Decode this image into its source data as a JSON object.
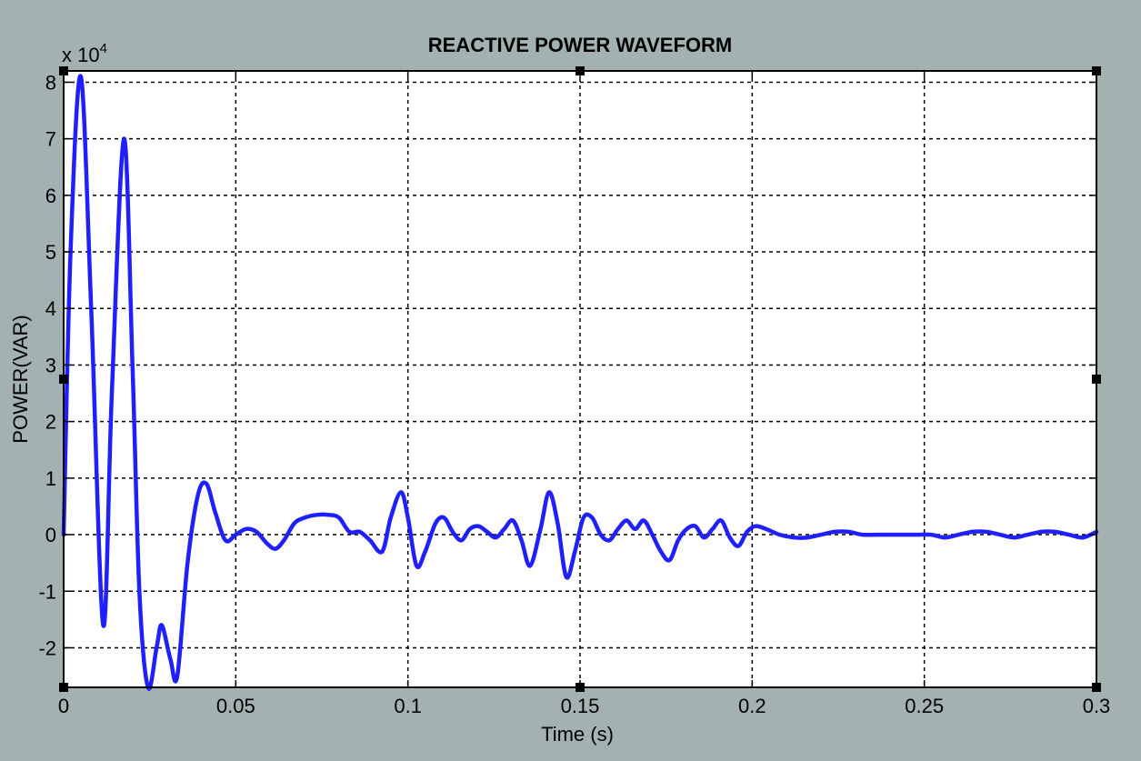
{
  "window": {
    "background": "#a3b2b0"
  },
  "chart_data": {
    "type": "line",
    "title": "REACTIVE POWER WAVEFORM",
    "xlabel": "Time (s)",
    "ylabel": "POWER(VAR)",
    "y_multiplier": "x 10",
    "y_multiplier_exponent": "4",
    "xlim": [
      0,
      0.3
    ],
    "ylim": [
      -2.7,
      8.2
    ],
    "x_ticks": [
      0,
      0.05,
      0.1,
      0.15,
      0.2,
      0.25,
      0.3
    ],
    "x_tick_labels": [
      "0",
      "0.05",
      "0.1",
      "0.15",
      "0.2",
      "0.25",
      "0.3"
    ],
    "y_ticks": [
      -2,
      -1,
      0,
      1,
      2,
      3,
      4,
      5,
      6,
      7,
      8
    ],
    "y_tick_labels": [
      "-2",
      "-1",
      "0",
      "1",
      "2",
      "3",
      "4",
      "5",
      "6",
      "7",
      "8"
    ],
    "grid": true,
    "colors": {
      "line": "#1f1fff",
      "axes_bg": "#ffffff",
      "grid": "#000000"
    },
    "series": [
      {
        "x": [
          0,
          0.002,
          0.005,
          0.008,
          0.0115,
          0.014,
          0.0175,
          0.02,
          0.022,
          0.0245,
          0.027,
          0.0285,
          0.031,
          0.033,
          0.036,
          0.039,
          0.0415,
          0.044,
          0.047,
          0.05,
          0.053,
          0.056,
          0.059,
          0.0615,
          0.064,
          0.067,
          0.07,
          0.0735,
          0.077,
          0.08,
          0.083,
          0.086,
          0.089,
          0.0925,
          0.095,
          0.098,
          0.1,
          0.1025,
          0.105,
          0.108,
          0.1105,
          0.113,
          0.1155,
          0.118,
          0.1205,
          0.123,
          0.1255,
          0.128,
          0.1305,
          0.133,
          0.1355,
          0.1385,
          0.141,
          0.1435,
          0.146,
          0.1485,
          0.151,
          0.1535,
          0.156,
          0.1585,
          0.161,
          0.1635,
          0.166,
          0.1685,
          0.171,
          0.1735,
          0.176,
          0.1785,
          0.181,
          0.1835,
          0.186,
          0.1885,
          0.191,
          0.1935,
          0.196,
          0.1985,
          0.201,
          0.204,
          0.208,
          0.212,
          0.216,
          0.22,
          0.224,
          0.228,
          0.232,
          0.236,
          0.24,
          0.244,
          0.248,
          0.252,
          0.256,
          0.26,
          0.264,
          0.268,
          0.272,
          0.276,
          0.28,
          0.284,
          0.288,
          0.292,
          0.296,
          0.3
        ],
        "y": [
          0,
          5.0,
          8.1,
          4.0,
          -1.6,
          2.5,
          7.0,
          3.0,
          -1.0,
          -2.7,
          -2.0,
          -1.6,
          -2.2,
          -2.5,
          -0.5,
          0.7,
          0.9,
          0.4,
          -0.1,
          0.0,
          0.1,
          0.05,
          -0.15,
          -0.25,
          -0.1,
          0.2,
          0.3,
          0.35,
          0.35,
          0.3,
          0.05,
          0.05,
          -0.1,
          -0.3,
          0.3,
          0.75,
          0.3,
          -0.55,
          -0.3,
          0.2,
          0.3,
          0.05,
          -0.1,
          0.1,
          0.15,
          0.05,
          -0.05,
          0.1,
          0.25,
          -0.1,
          -0.55,
          0.1,
          0.75,
          0.2,
          -0.75,
          -0.3,
          0.3,
          0.3,
          0.0,
          -0.1,
          0.1,
          0.25,
          0.1,
          0.25,
          0.0,
          -0.3,
          -0.45,
          -0.1,
          0.1,
          0.15,
          -0.05,
          0.1,
          0.25,
          -0.05,
          -0.2,
          0.05,
          0.15,
          0.1,
          0.0,
          -0.05,
          -0.05,
          0.0,
          0.05,
          0.05,
          0.0,
          0.0,
          0.0,
          0.0,
          0.0,
          0.0,
          -0.05,
          0.0,
          0.05,
          0.05,
          0.0,
          -0.05,
          0.0,
          0.05,
          0.05,
          0.0,
          -0.05,
          0.05
        ]
      }
    ]
  }
}
